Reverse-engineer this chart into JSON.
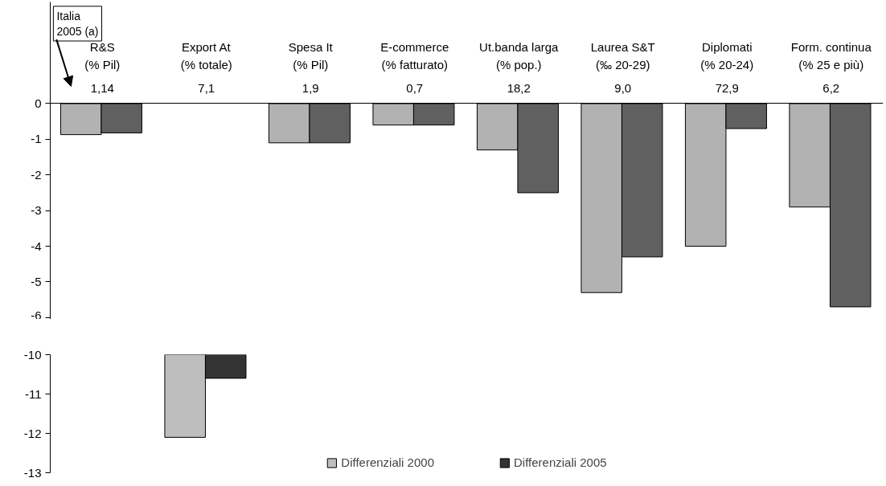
{
  "chart_data": [
    {
      "type": "bar",
      "categories": [
        "R&S\n(% Pil)",
        "Export At\n(% totale)",
        "Spesa It\n(% Pil)",
        "E-commerce\n(% fatturato)",
        "Ut.banda larga\n(% pop.)",
        "Laurea S&T\n(‰ 20-29)",
        "Diplomati\n(% 20-24)",
        "Form. continua\n(% 25 e più)"
      ],
      "series": [
        {
          "color": "#b2b2b2",
          "values": [
            -0.87,
            null,
            -1.1,
            -0.6,
            -1.3,
            -5.3,
            -4.0,
            -2.9
          ]
        },
        {
          "color": "#606060",
          "values": [
            -0.82,
            null,
            -1.1,
            -0.6,
            -2.5,
            -4.3,
            -0.7,
            -5.7
          ]
        }
      ],
      "ylim": [
        -6.05,
        2.85
      ],
      "yticks": [
        0,
        -1,
        -2,
        -3,
        -4,
        -5,
        -6
      ],
      "annotations": [
        "Italia\n2005 (a)",
        "1,14",
        "7,1",
        "1,9",
        "0,7",
        "18,2",
        "9,0",
        "72,9",
        "6,2"
      ]
    },
    {
      "type": "bar",
      "categories": [
        null,
        null,
        null,
        null,
        null,
        null,
        null,
        null
      ],
      "series": [
        {
          "name": "Differenziali 2000",
          "color": "#bebebe",
          "values": [
            null,
            -12.1,
            null,
            null,
            null,
            null,
            null,
            null
          ]
        },
        {
          "name": "Differenziali 2005",
          "color": "#333333",
          "values": [
            null,
            -10.6,
            null,
            null,
            null,
            null,
            null,
            null
          ]
        }
      ],
      "ylim": [
        -13,
        -10
      ],
      "yticks": [
        -10,
        -11,
        -12,
        -13
      ],
      "legend": "bottom",
      "tick_labels": "y"
    }
  ]
}
